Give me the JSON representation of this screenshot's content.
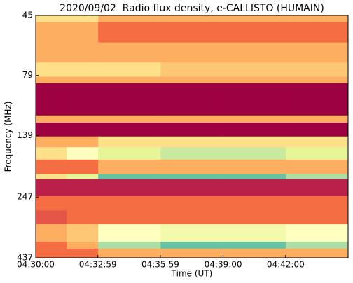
{
  "chart_data": {
    "type": "heatmap",
    "title": "2020/09/02  Radio flux density, e-CALLISTO (HUMAIN)",
    "x_label": "Time (UT)",
    "y_label": "Frequency (MHz)",
    "x": [
      16200,
      16290,
      16380,
      16560,
      16740,
      16920,
      17100
    ],
    "y": [
      45,
      48,
      58,
      70,
      80,
      85,
      115,
      123,
      140,
      155,
      174,
      199,
      209,
      245,
      280,
      319,
      376,
      401,
      437
    ],
    "values": [
      [
        4,
        4,
        3,
        3,
        3,
        3
      ],
      [
        3,
        3,
        2,
        2,
        2,
        2
      ],
      [
        3,
        3,
        3,
        3,
        3,
        3
      ],
      [
        4,
        4,
        4,
        3.5,
        3.5,
        3.5
      ],
      [
        3,
        3,
        3,
        3,
        3,
        3
      ],
      [
        0,
        0,
        0,
        0,
        0,
        0
      ],
      [
        3,
        3,
        3,
        3,
        3,
        3
      ],
      [
        0,
        0,
        0,
        0,
        0,
        0
      ],
      [
        3,
        3,
        4,
        4,
        4,
        4
      ],
      [
        4,
        5,
        6,
        6.5,
        6.5,
        6
      ],
      [
        2,
        2,
        3,
        3,
        3,
        3
      ],
      [
        4,
        6,
        8,
        8,
        8,
        7
      ],
      [
        0.5,
        0.5,
        0.5,
        0.5,
        0.5,
        0.5
      ],
      [
        2,
        2,
        2,
        2,
        2,
        2
      ],
      [
        1.5,
        2,
        2,
        2,
        2,
        2
      ],
      [
        3,
        3.5,
        5,
        5.5,
        5.5,
        5
      ],
      [
        2,
        3,
        7,
        8,
        8,
        7
      ],
      [
        2,
        2,
        3,
        3,
        3,
        3
      ]
    ],
    "clim": [
      0,
      10
    ],
    "colormap": [
      "#9e0142",
      "#d53e4f",
      "#f46d43",
      "#fdae61",
      "#fee08b",
      "#ffffbf",
      "#e6f598",
      "#abdda4",
      "#66c2a5",
      "#3288bd",
      "#5e4fa2"
    ],
    "xlim": [
      16200,
      17100
    ],
    "xticks": [
      {
        "value": 16200,
        "label": "04:30:00"
      },
      {
        "value": 16379,
        "label": "04:32:59"
      },
      {
        "value": 16559,
        "label": "04:35:59"
      },
      {
        "value": 16740,
        "label": "04:39:00"
      },
      {
        "value": 16920,
        "label": "04:42:00"
      }
    ],
    "ylim": [
      437,
      45
    ],
    "yticks": [
      45,
      79,
      139,
      247,
      437
    ],
    "yscale": "log"
  }
}
